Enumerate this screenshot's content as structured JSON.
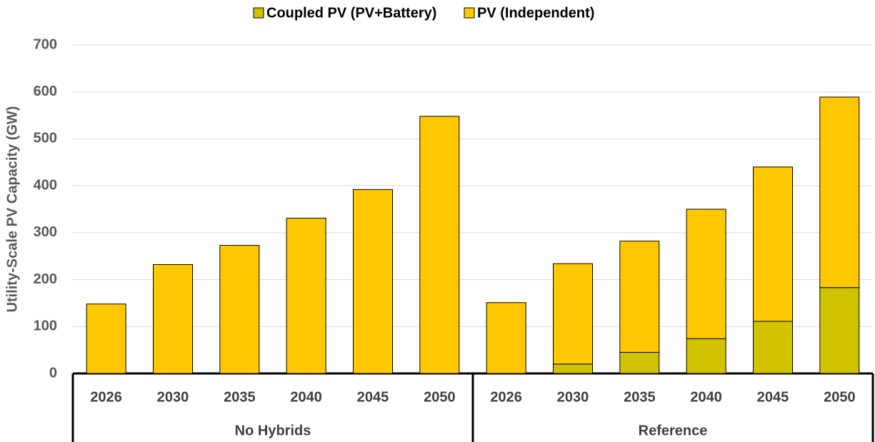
{
  "chart_data": {
    "type": "stacked_bar",
    "y_label": "Utility-Scale PV Capacity (GW)",
    "groups": [
      {
        "label": "No Hybrids",
        "categories": [
          "2026",
          "2030",
          "2035",
          "2040",
          "2045",
          "2050"
        ]
      },
      {
        "label": "Reference",
        "categories": [
          "2026",
          "2030",
          "2035",
          "2040",
          "2045",
          "2050"
        ]
      }
    ],
    "series": [
      {
        "name": "Coupled PV (PV+Battery)",
        "color": "#d1c300",
        "values": [
          0,
          0,
          0,
          0,
          0,
          0,
          0,
          20,
          45,
          74,
          111,
          183
        ]
      },
      {
        "name": "PV (Independent)",
        "color": "#ffc800",
        "values": [
          148,
          232,
          273,
          331,
          392,
          548,
          151,
          214,
          237,
          276,
          329,
          406
        ]
      }
    ],
    "ylim": [
      0,
      700
    ],
    "yticks": [
      0,
      100,
      200,
      300,
      400,
      500,
      600,
      700
    ],
    "grid": true,
    "legend": "top"
  }
}
